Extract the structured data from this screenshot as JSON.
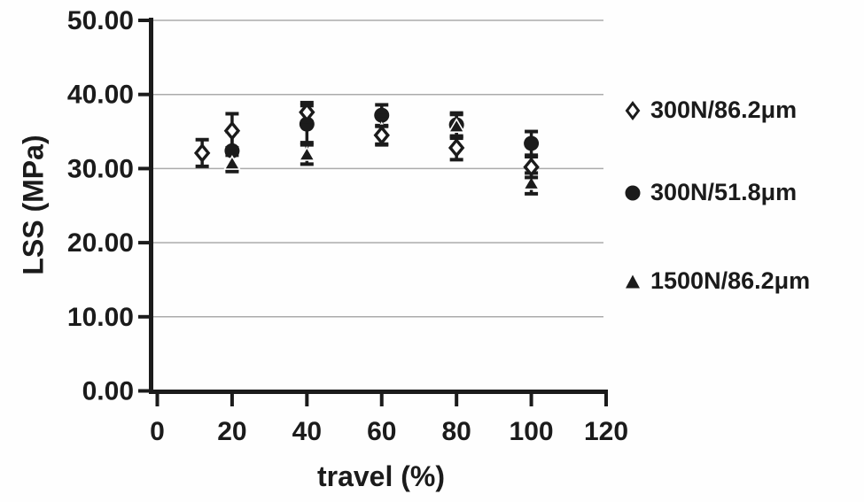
{
  "figure": {
    "background": "#fefefe",
    "ink": "#1b1b1b",
    "grid_color": "#ababab"
  },
  "chart_data": {
    "type": "scatter",
    "title": "",
    "xlabel": "travel (%)",
    "ylabel": "LSS (MPa)",
    "xlim": [
      0,
      120
    ],
    "ylim": [
      0,
      50
    ],
    "xticks": [
      0,
      20,
      40,
      60,
      80,
      100,
      120
    ],
    "yticks": [
      "0.00",
      "10.00",
      "20.00",
      "30.00",
      "40.00",
      "50.00"
    ],
    "grid": "horizontal",
    "legend_position": "right",
    "error_bars": true,
    "series": [
      {
        "name": "300N/86.2μm",
        "marker": "diamond-open",
        "points": [
          {
            "x": 12,
            "y": 32.1,
            "err": 1.8
          },
          {
            "x": 20,
            "y": 35.1,
            "err": 2.3
          },
          {
            "x": 40,
            "y": 37.6,
            "err": 1.3
          },
          {
            "x": 60,
            "y": 34.5,
            "err": 1.2
          },
          {
            "x": 80,
            "y": 32.8,
            "err": 1.6
          },
          {
            "x": 100,
            "y": 30.2,
            "err": 1.4
          }
        ]
      },
      {
        "name": "300N/51.8μm",
        "marker": "circle-filled",
        "points": [
          {
            "x": 20,
            "y": 32.4,
            "err": 2.6
          },
          {
            "x": 40,
            "y": 36.0,
            "err": 2.5
          },
          {
            "x": 60,
            "y": 37.2,
            "err": 1.4
          },
          {
            "x": 80,
            "y": 35.9,
            "err": 1.6
          },
          {
            "x": 100,
            "y": 33.4,
            "err": 1.6
          }
        ]
      },
      {
        "name": "1500N/86.2μm",
        "marker": "triangle-filled",
        "points": [
          {
            "x": 20,
            "y": 30.7,
            "err": 1.1
          },
          {
            "x": 40,
            "y": 31.9,
            "err": 1.3
          },
          {
            "x": 60,
            "y": 35.2,
            "err": 2.0
          },
          {
            "x": 80,
            "y": 35.7,
            "err": 1.6
          },
          {
            "x": 100,
            "y": 28.0,
            "err": 1.4
          }
        ]
      }
    ]
  }
}
